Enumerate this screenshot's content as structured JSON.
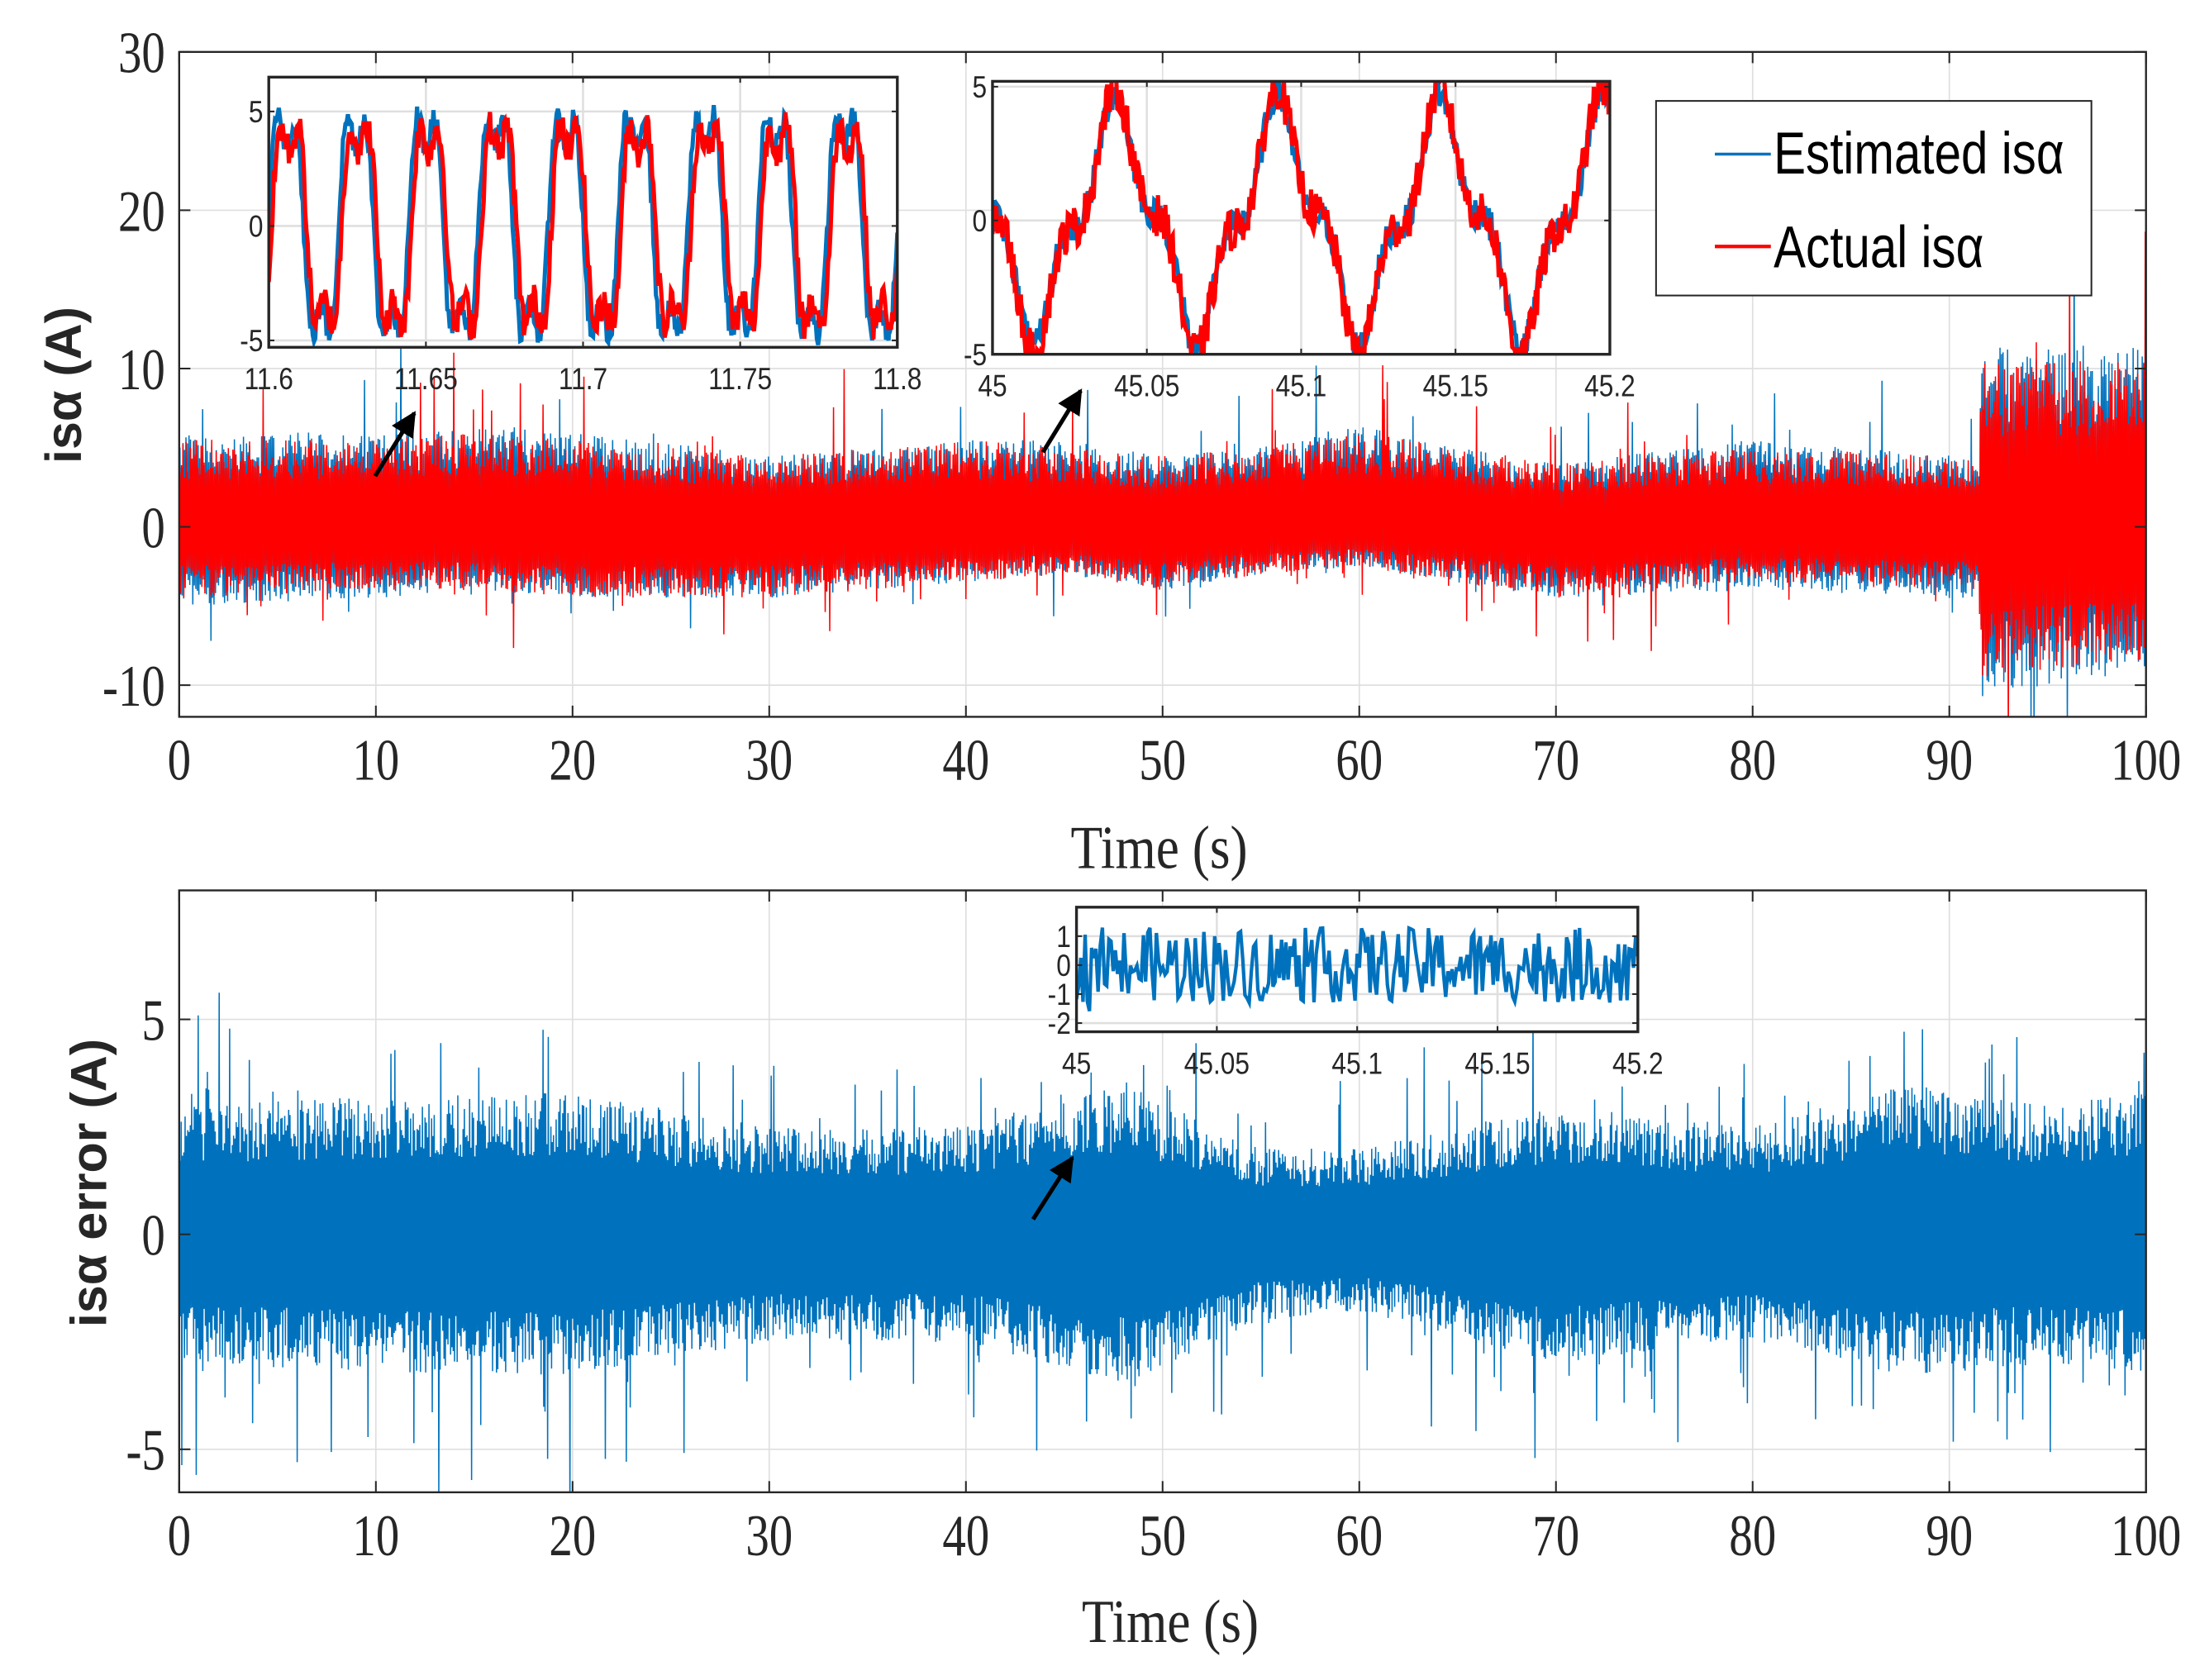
{
  "chart_data": [
    {
      "type": "line",
      "title": "",
      "xlabel": "Time (s)",
      "ylabel": "isα (A)",
      "xlim": [
        0,
        100
      ],
      "ylim": [
        -12,
        30
      ],
      "xticks": [
        0,
        10,
        20,
        30,
        40,
        50,
        60,
        70,
        80,
        90,
        100
      ],
      "yticks": [
        -10,
        0,
        10,
        20,
        30
      ],
      "grid": true,
      "legend_placement": "top-right",
      "legend": [
        "Estimated isα",
        "Actual isα"
      ],
      "series": [
        {
          "name": "Estimated isα",
          "color": "#0072BD",
          "envelope_x": [
            0,
            10,
            15,
            20,
            30,
            40,
            45,
            50,
            55,
            60,
            65,
            70,
            80,
            90,
            91.5,
            91.6,
            100
          ],
          "upper": [
            6,
            6,
            6.5,
            6,
            4.5,
            5.5,
            5.5,
            4.5,
            5,
            6.5,
            5,
            4,
            5.5,
            4.5,
            4.5,
            11.5,
            11.5
          ],
          "lower": [
            -5,
            -4.5,
            -4,
            -4.5,
            -4.5,
            -3.5,
            -3,
            -4,
            -3,
            -2.5,
            -3.5,
            -4.5,
            -4,
            -4.5,
            -4.5,
            -10.5,
            -9.5
          ]
        },
        {
          "name": "Actual isα",
          "color": "#FF0000",
          "envelope_x": [
            0,
            10,
            15,
            20,
            30,
            40,
            45,
            50,
            55,
            60,
            65,
            70,
            80,
            90,
            91.5,
            91.6,
            100
          ],
          "upper": [
            5.5,
            5.5,
            6,
            5.5,
            4.5,
            5.5,
            5,
            4.5,
            5,
            6,
            5,
            4,
            5,
            4.5,
            4.5,
            10.5,
            10.5
          ],
          "lower": [
            -4.5,
            -4,
            -4,
            -4.5,
            -4.5,
            -3.5,
            -3,
            -4,
            -3,
            -2.5,
            -3.5,
            -4.5,
            -3.5,
            -4,
            -4,
            -9.5,
            -8.5
          ]
        }
      ],
      "insets": [
        {
          "xlim": [
            11.6,
            11.8
          ],
          "ylim": [
            -5.3,
            6.5
          ],
          "xticks": [
            11.6,
            11.65,
            11.7,
            11.75,
            11.8
          ],
          "xtick_labels": [
            "11.6",
            "11.65",
            "11.7",
            "11.75",
            "11.8"
          ],
          "yticks": [
            -5,
            0,
            5
          ],
          "ytick_labels": [
            "-5",
            "0",
            "5"
          ],
          "frequency_hz": 45,
          "estimated_amplitude": 6,
          "actual_amplitude": 5.5,
          "actual_lag_s": 0.001
        },
        {
          "xlim": [
            45,
            45.2
          ],
          "ylim": [
            -5,
            5.2
          ],
          "xticks": [
            45,
            45.05,
            45.1,
            45.15,
            45.2
          ],
          "xtick_labels": [
            "45",
            "45.05",
            "45.1",
            "45.15",
            "45.2"
          ],
          "yticks": [
            -5,
            0,
            5
          ],
          "ytick_labels": [
            "-5",
            "0",
            "5"
          ],
          "frequency_hz": 19,
          "estimated_amplitude": 4.3,
          "actual_amplitude": 4.5,
          "first_peak_s": 45.04
        }
      ]
    },
    {
      "type": "line",
      "title": "",
      "xlabel": "Time (s)",
      "ylabel": "isα error (A)",
      "xlim": [
        0,
        100
      ],
      "ylim": [
        -6,
        8
      ],
      "xticks": [
        0,
        10,
        20,
        30,
        40,
        50,
        60,
        70,
        80,
        90,
        100
      ],
      "yticks": [
        -5,
        0,
        5
      ],
      "grid": true,
      "series": [
        {
          "name": "isα error",
          "color": "#0072BD",
          "envelope_x": [
            0,
            10,
            20,
            30,
            40,
            48,
            55,
            60,
            70,
            80,
            88,
            95,
            100
          ],
          "upper": [
            3,
            3.2,
            3.3,
            2.5,
            2.5,
            3.5,
            2,
            2,
            3,
            2.5,
            3.5,
            3,
            3.3
          ],
          "lower": [
            -3,
            -3.2,
            -3.3,
            -2.5,
            -2.5,
            -3.5,
            -2,
            -1.8,
            -3,
            -2.5,
            -3.3,
            -3,
            -3.2
          ]
        }
      ],
      "insets": [
        {
          "xlim": [
            45,
            45.2
          ],
          "ylim": [
            -2.3,
            2
          ],
          "xticks": [
            45,
            45.05,
            45.1,
            45.15,
            45.2
          ],
          "xtick_labels": [
            "45",
            "45.05",
            "45.1",
            "45.15",
            "45.2"
          ],
          "yticks": [
            -2,
            -1,
            0,
            1
          ],
          "ytick_labels": [
            "-2",
            "-1",
            "0",
            "1"
          ],
          "noise_amplitude": 1
        }
      ]
    }
  ],
  "tick_labels": {
    "x": [
      "0",
      "10",
      "20",
      "30",
      "40",
      "50",
      "60",
      "70",
      "80",
      "90",
      "100"
    ],
    "y_top": [
      "-10",
      "0",
      "10",
      "20",
      "30"
    ],
    "y_bottom": [
      "-5",
      "0",
      "5"
    ]
  }
}
